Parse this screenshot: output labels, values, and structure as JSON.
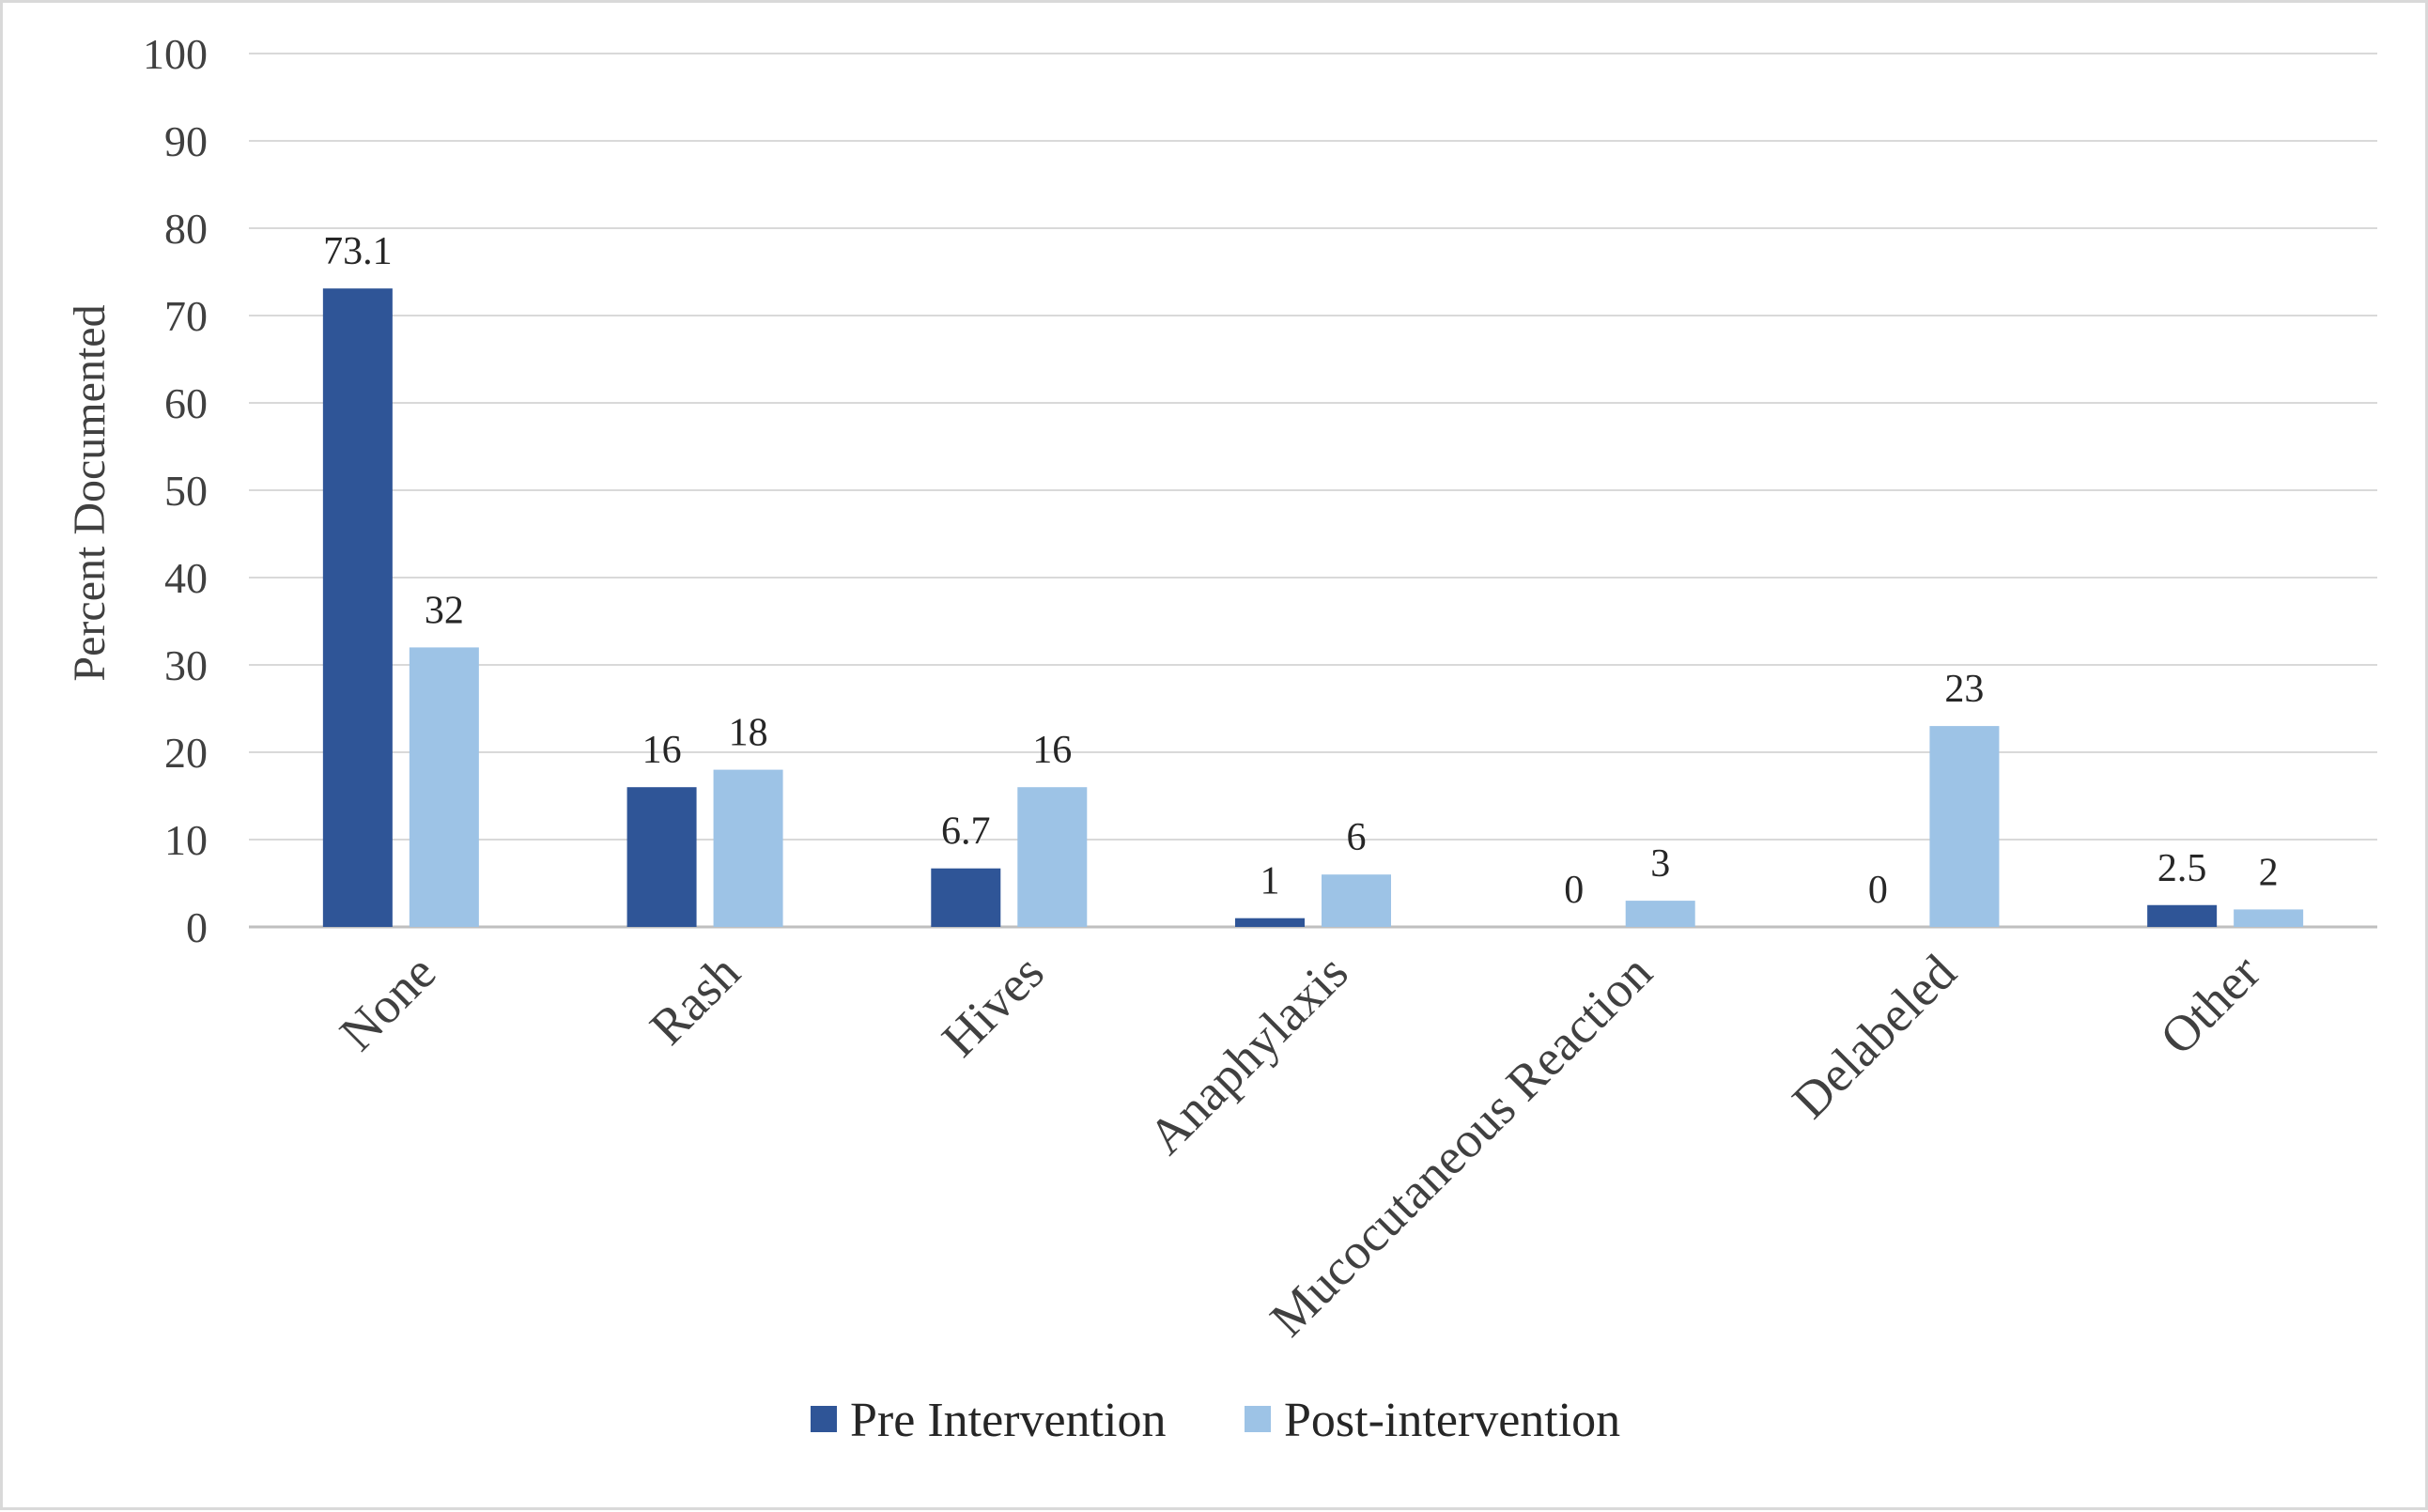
{
  "chart_data": {
    "type": "bar",
    "title": "",
    "xlabel": "",
    "ylabel": "Percent Documented",
    "ylim": [
      0,
      100
    ],
    "yticks": [
      0,
      10,
      20,
      30,
      40,
      50,
      60,
      70,
      80,
      90,
      100
    ],
    "grid": true,
    "legend_position": "bottom",
    "categories": [
      "None",
      "Rash",
      "Hives",
      "Anaphylaxis",
      "Mucocutaneous Reaction",
      "Delabeled",
      "Other"
    ],
    "series": [
      {
        "name": "Pre Intervention",
        "color": "#2f5597",
        "values": [
          73.1,
          16,
          6.7,
          1,
          0,
          0,
          2.5
        ],
        "labels": [
          "73.1",
          "16",
          "6.7",
          "1",
          "0",
          "0",
          "2.5"
        ]
      },
      {
        "name": "Post-intervention",
        "color": "#9dc3e6",
        "values": [
          32,
          18,
          16,
          6,
          3,
          23,
          2
        ],
        "labels": [
          "32",
          "18",
          "16",
          "6",
          "3",
          "23",
          "2"
        ]
      }
    ]
  }
}
